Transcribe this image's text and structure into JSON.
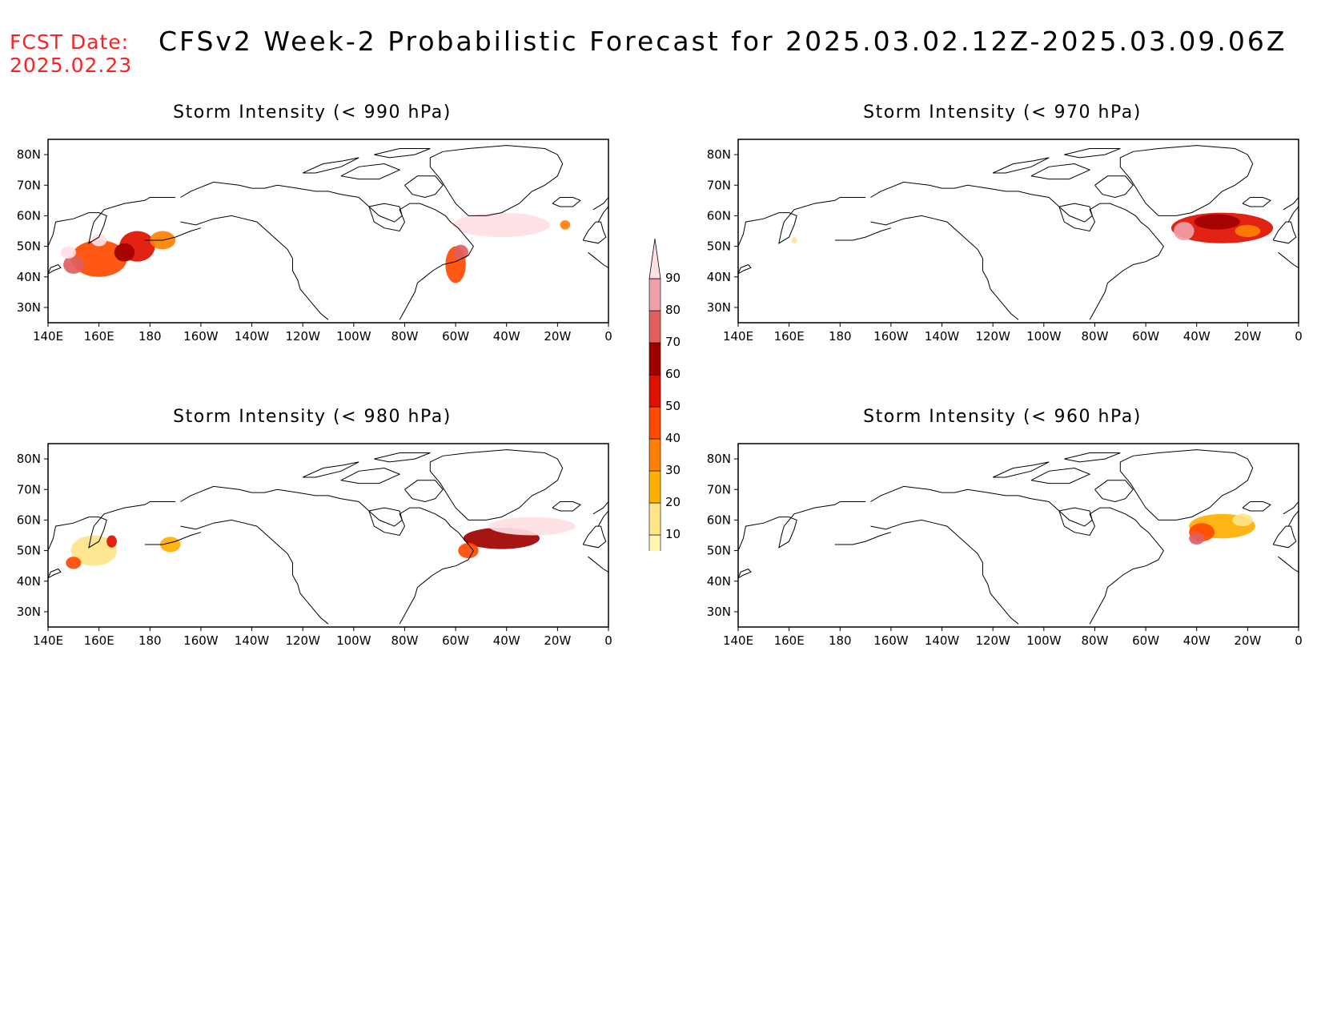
{
  "header": {
    "fcst_label": "FCST Date:",
    "fcst_date": "2025.02.23",
    "title": "CFSv2 Week-2 Probabilistic Forecast for 2025.03.02.12Z-2025.03.09.06Z"
  },
  "lon_ticks": [
    "140E",
    "160E",
    "180",
    "160W",
    "140W",
    "120W",
    "100W",
    "80W",
    "60W",
    "40W",
    "20W",
    "0"
  ],
  "lat_ticks": [
    "30N",
    "40N",
    "50N",
    "60N",
    "70N",
    "80N"
  ],
  "map_extent": {
    "lon_min": 140,
    "lon_max": 360,
    "lat_min": 25,
    "lat_max": 85
  },
  "colorbar": {
    "levels": [
      "10",
      "20",
      "30",
      "40",
      "50",
      "60",
      "70",
      "80",
      "90"
    ],
    "colors": [
      "#fff4b0",
      "#ffe48a",
      "#ffb000",
      "#ff8000",
      "#ff4a00",
      "#e01000",
      "#a00000",
      "#e06060",
      "#f0a0a8",
      "#ffe0e4"
    ]
  },
  "colors": {
    "fcst_text": "#ff2020",
    "coast": "#000000"
  },
  "panels": [
    {
      "id": "p990",
      "title": "Storm Intensity (< 990 hPa)",
      "blobs": [
        {
          "lon": 160,
          "lat": 46,
          "w": 22,
          "h": 12,
          "level": 4
        },
        {
          "lon": 175,
          "lat": 50,
          "w": 14,
          "h": 10,
          "level": 5
        },
        {
          "lon": 170,
          "lat": 48,
          "w": 8,
          "h": 6,
          "level": 6
        },
        {
          "lon": 185,
          "lat": 52,
          "w": 10,
          "h": 6,
          "level": 3
        },
        {
          "lon": 150,
          "lat": 44,
          "w": 8,
          "h": 6,
          "level": 7
        },
        {
          "lon": 160,
          "lat": 52,
          "w": 6,
          "h": 4,
          "level": 9
        },
        {
          "lon": 148,
          "lat": 48,
          "w": 6,
          "h": 4,
          "level": 9
        },
        {
          "lon": 300,
          "lat": 44,
          "w": 8,
          "h": 12,
          "level": 4
        },
        {
          "lon": 302,
          "lat": 48,
          "w": 6,
          "h": 5,
          "level": 7
        },
        {
          "lon": 318,
          "lat": 57,
          "w": 38,
          "h": 8,
          "level": 9
        },
        {
          "lon": 343,
          "lat": 57,
          "w": 4,
          "h": 3,
          "level": 3
        }
      ]
    },
    {
      "id": "p970",
      "title": "Storm Intensity (< 970 hPa)",
      "blobs": [
        {
          "lon": 162,
          "lat": 52,
          "w": 2,
          "h": 2,
          "level": 1
        },
        {
          "lon": 330,
          "lat": 56,
          "w": 40,
          "h": 10,
          "level": 5
        },
        {
          "lon": 328,
          "lat": 58,
          "w": 18,
          "h": 5,
          "level": 6
        },
        {
          "lon": 315,
          "lat": 55,
          "w": 8,
          "h": 6,
          "level": 8
        },
        {
          "lon": 340,
          "lat": 55,
          "w": 10,
          "h": 4,
          "level": 3
        }
      ]
    },
    {
      "id": "p980",
      "title": "Storm Intensity (< 980 hPa)",
      "blobs": [
        {
          "lon": 158,
          "lat": 50,
          "w": 18,
          "h": 10,
          "level": 1
        },
        {
          "lon": 150,
          "lat": 46,
          "w": 6,
          "h": 4,
          "level": 4
        },
        {
          "lon": 165,
          "lat": 53,
          "w": 4,
          "h": 4,
          "level": 5
        },
        {
          "lon": 188,
          "lat": 52,
          "w": 8,
          "h": 5,
          "level": 2
        },
        {
          "lon": 318,
          "lat": 54,
          "w": 30,
          "h": 7,
          "level": 6
        },
        {
          "lon": 330,
          "lat": 58,
          "w": 34,
          "h": 6,
          "level": 9
        },
        {
          "lon": 305,
          "lat": 50,
          "w": 8,
          "h": 5,
          "level": 4
        }
      ]
    },
    {
      "id": "p960",
      "title": "Storm Intensity (< 960 hPa)",
      "blobs": [
        {
          "lon": 330,
          "lat": 58,
          "w": 26,
          "h": 8,
          "level": 2
        },
        {
          "lon": 322,
          "lat": 56,
          "w": 10,
          "h": 6,
          "level": 4
        },
        {
          "lon": 320,
          "lat": 54,
          "w": 6,
          "h": 4,
          "level": 7
        },
        {
          "lon": 338,
          "lat": 60,
          "w": 8,
          "h": 4,
          "level": 1
        }
      ]
    }
  ]
}
